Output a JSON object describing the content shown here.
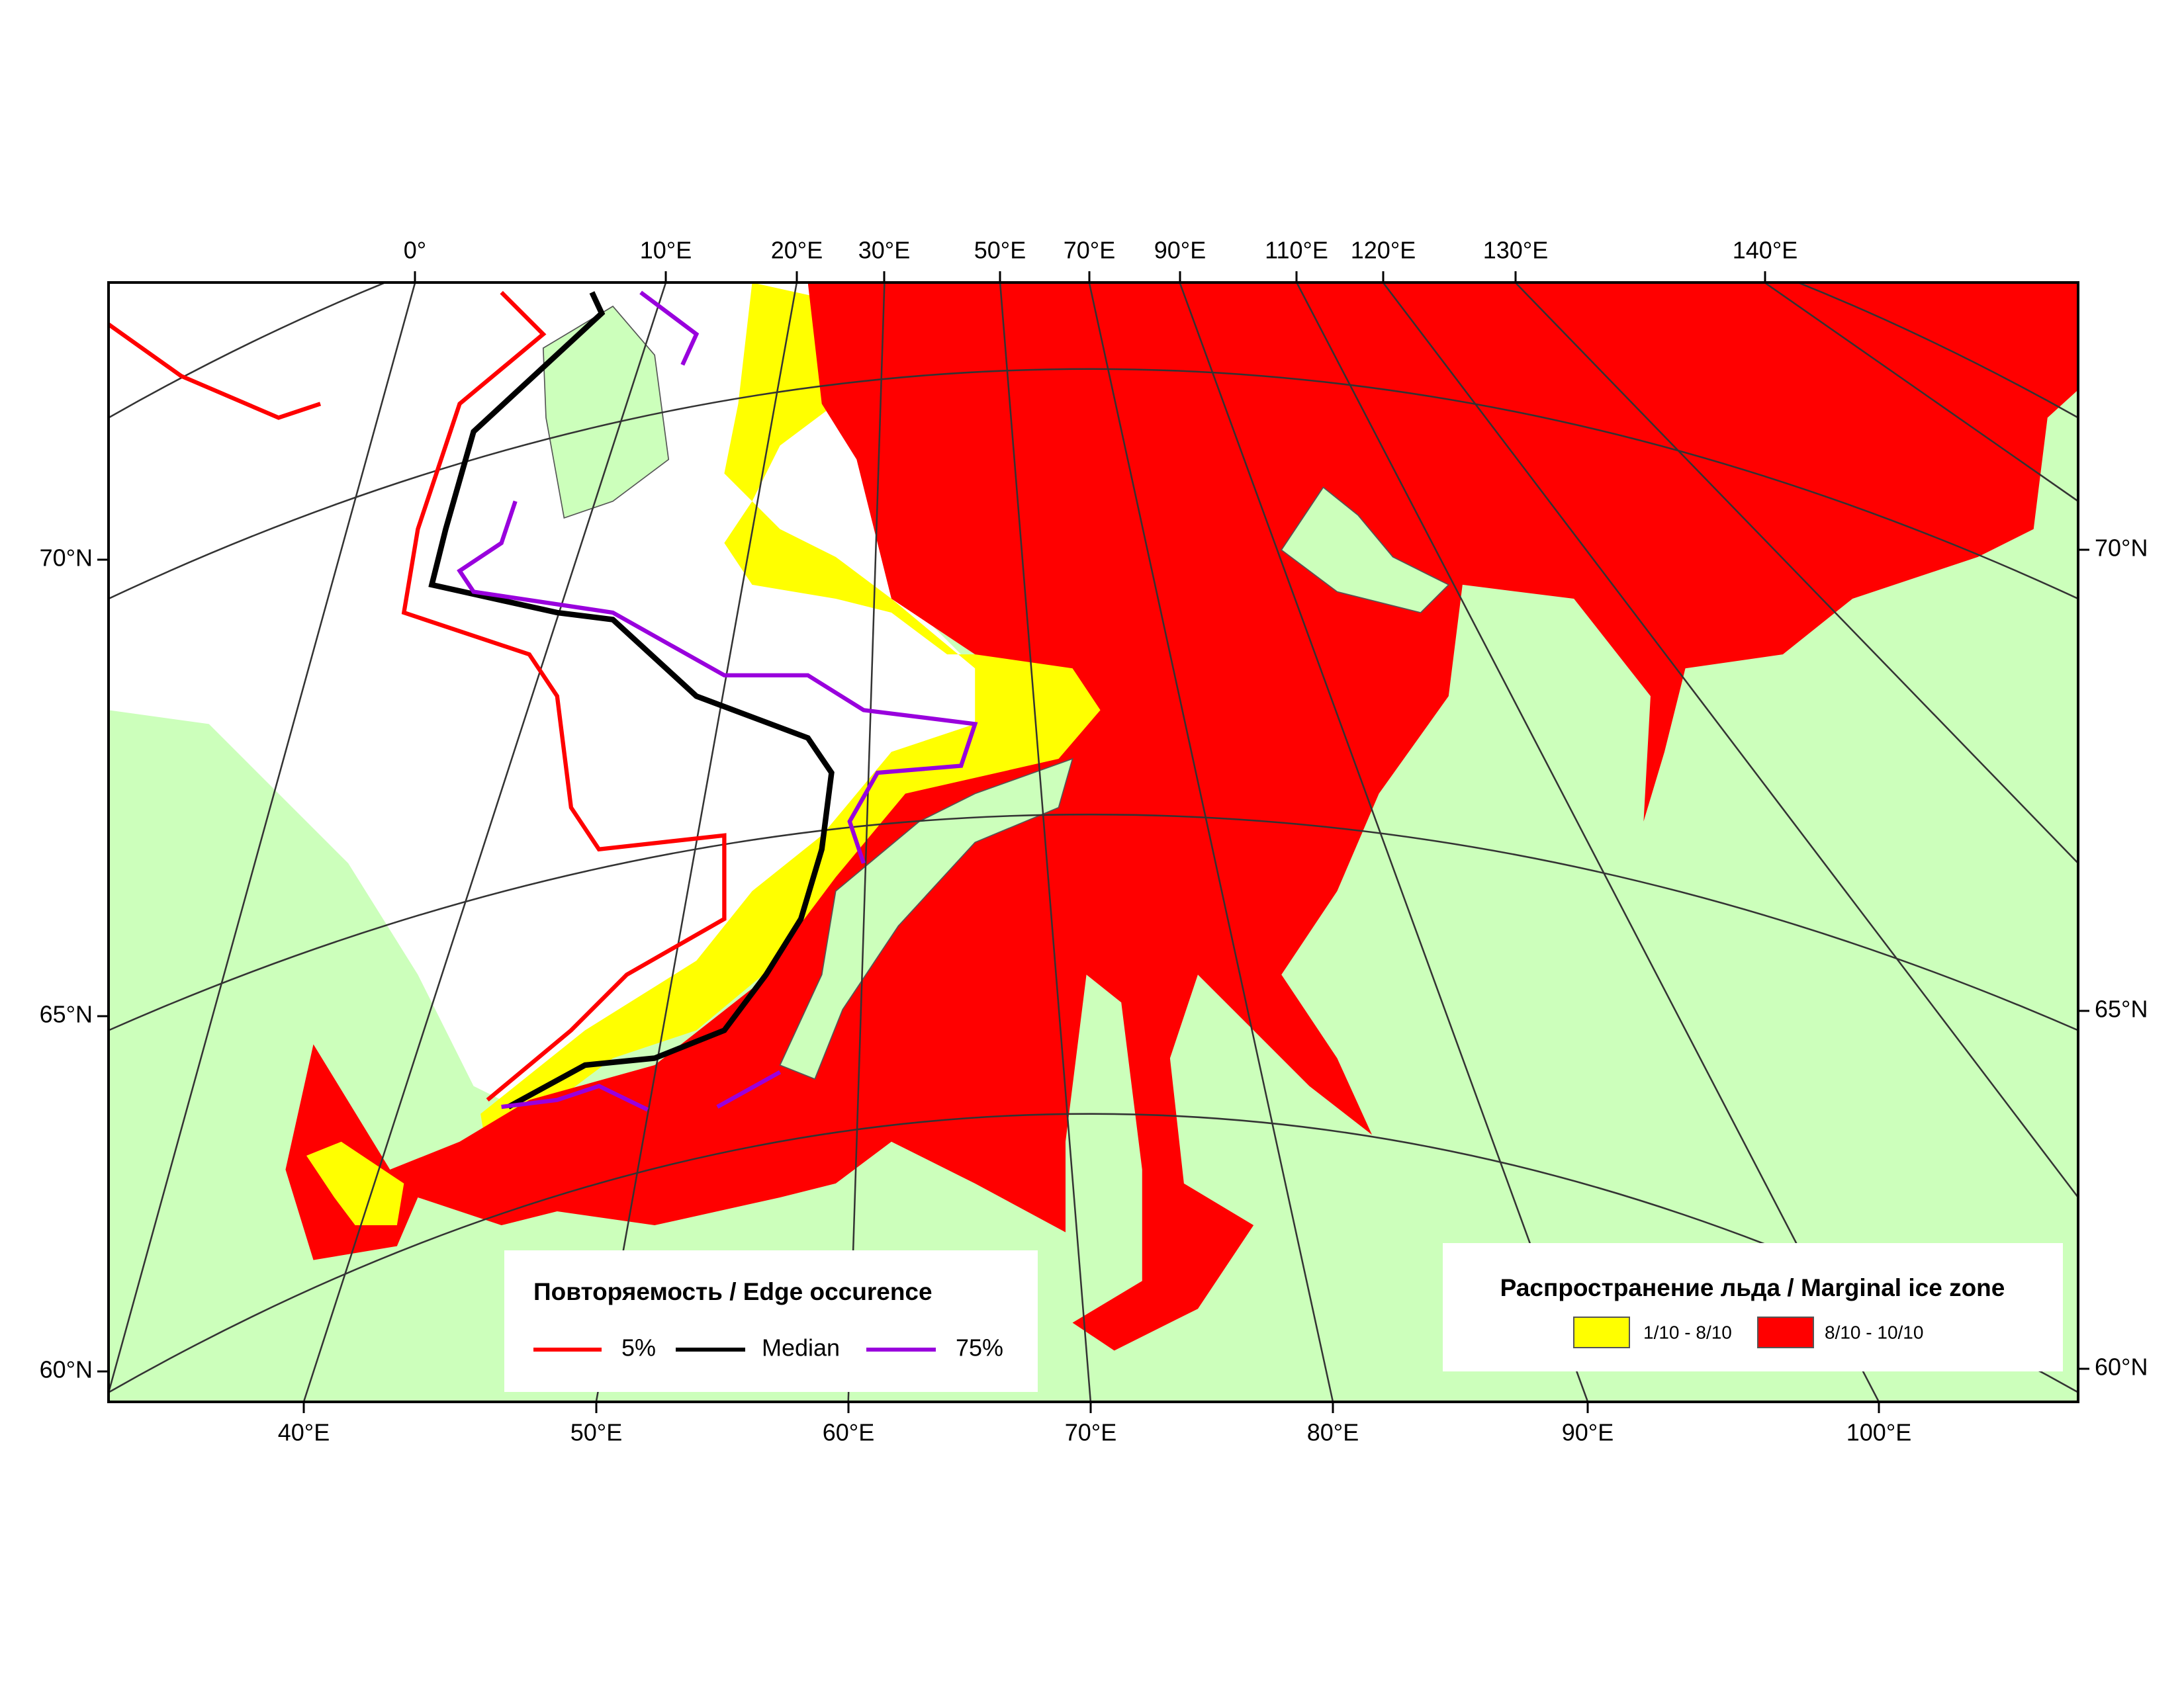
{
  "top_axis_labels": [
    "0°",
    "10°E",
    "20°E",
    "30°E",
    "50°E",
    "70°E",
    "90°E",
    "110°E",
    "120°E",
    "130°E",
    "140°E"
  ],
  "bottom_axis_labels": [
    "40°E",
    "50°E",
    "60°E",
    "70°E",
    "80°E",
    "90°E",
    "100°E"
  ],
  "left_axis_labels": [
    "70°N",
    "65°N",
    "60°N"
  ],
  "right_axis_labels": [
    "70°N",
    "65°N",
    "60°N"
  ],
  "legend_edge": {
    "title": "Повторяемость / Edge occurence",
    "items": [
      "5%",
      "Median",
      "75%"
    ]
  },
  "legend_ice": {
    "title": "Распространение льда / Marginal ice zone",
    "items": [
      "1/10 - 8/10",
      "8/10 - 10/10"
    ]
  }
}
